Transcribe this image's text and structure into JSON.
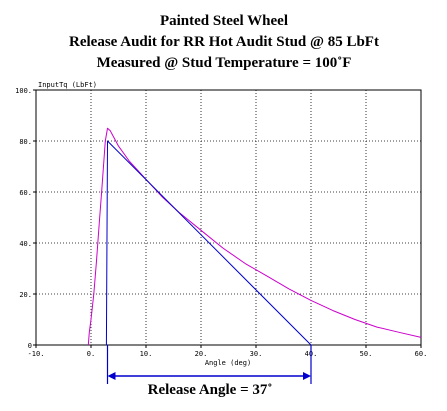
{
  "chart_data": {
    "type": "line",
    "title_lines": [
      "Painted Steel Wheel",
      "Release Audit for RR Hot Audit Stud @ 85 LbFt",
      "Measured @ Stud Temperature = 100˚F"
    ],
    "xlabel": "Angle (deg)",
    "ylabel": "InputTq (LbFt)",
    "xlim": [
      -10,
      60
    ],
    "ylim": [
      0,
      100
    ],
    "x_ticks": [
      "-10.",
      "0.",
      "10.",
      "20.",
      "30.",
      "40.",
      "50.",
      "60."
    ],
    "y_ticks": [
      "0",
      "20.",
      "40.",
      "60.",
      "80.",
      "100."
    ],
    "x_tick_values": [
      -10,
      0,
      10,
      20,
      30,
      40,
      50,
      60
    ],
    "y_tick_values": [
      0,
      20,
      40,
      60,
      80,
      100
    ],
    "grid": true,
    "series": [
      {
        "color": "#cc00cc",
        "x": [
          -0.5,
          -0.3,
          0,
          0.5,
          1,
          1.5,
          2,
          2.6,
          3,
          3.5,
          4,
          5,
          7,
          10,
          13,
          16,
          20,
          24,
          28,
          32,
          36,
          40,
          44,
          48,
          52,
          56,
          60
        ],
        "y": [
          0,
          5,
          10,
          20,
          33,
          48,
          62,
          80,
          85,
          84,
          82,
          78,
          72,
          65,
          58,
          52,
          45,
          38,
          32,
          27,
          22,
          17.5,
          13.5,
          10,
          7,
          5,
          3
        ]
      },
      {
        "color": "#0000cc",
        "x": [
          2.8,
          3,
          40
        ],
        "y": [
          0,
          80,
          0
        ]
      }
    ],
    "annotations": [
      {
        "text": "Release Angle = 37˚",
        "from_x": 3,
        "to_x": 40,
        "color": "#0000cc"
      }
    ]
  }
}
